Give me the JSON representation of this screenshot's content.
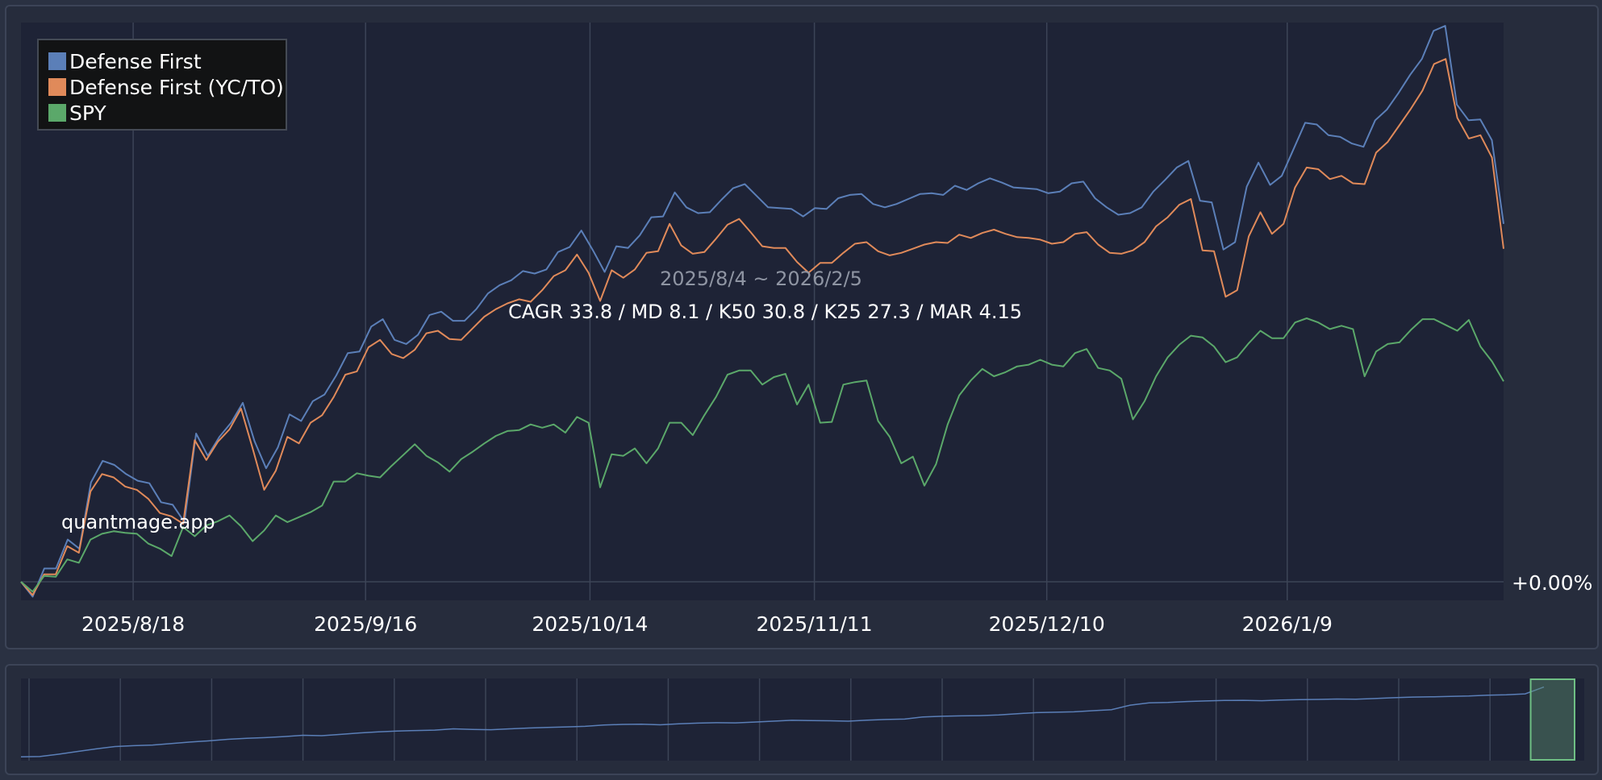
{
  "watermark": "quantmage.app",
  "period_label": "2025/8/4 ~ 2026/2/5",
  "stats_label": "CAGR 33.8 / MD 8.1 / K50 30.8 / K25 27.3 / MAR 4.15",
  "zero_label": "+0.00%",
  "colors": {
    "page_bg": "#2a3142",
    "plot_bg": "#1e2336",
    "grid": "#3c4457",
    "defense_first": "#5b7fb8",
    "defense_first_yc": "#e08a5a",
    "spy": "#5ba86a",
    "period_text": "#8f95a3",
    "text": "#ffffff"
  },
  "chart_data": {
    "type": "line",
    "title": "",
    "xlabel": "",
    "ylabel": "",
    "x_range": [
      "2025-08-04",
      "2026-02-05"
    ],
    "x_tick_labels": [
      "2025/8/18",
      "2025/9/16",
      "2025/10/14",
      "2025/11/11",
      "2025/12/10",
      "2026/1/9"
    ],
    "y_tick_labels": [
      "+0.00%"
    ],
    "legend_position": "top-left",
    "grid": true,
    "series": [
      {
        "name": "Defense First",
        "color": "#5b7fb8",
        "values": [
          0.0,
          -1.8,
          1.6,
          1.6,
          5.1,
          4.0,
          12.0,
          14.6,
          14.1,
          13.0,
          12.2,
          11.9,
          9.6,
          9.3,
          7.2,
          17.9,
          15.2,
          17.5,
          19.2,
          21.6,
          17.0,
          13.7,
          16.2,
          20.2,
          19.4,
          21.8,
          22.6,
          24.9,
          27.6,
          27.8,
          30.8,
          31.7,
          29.2,
          28.7,
          29.8,
          32.2,
          32.6,
          31.5,
          31.5,
          32.9,
          34.8,
          35.8,
          36.4,
          37.5,
          37.2,
          37.7,
          39.8,
          40.4,
          42.4,
          40.0,
          37.4,
          40.5,
          40.3,
          41.8,
          44.0,
          44.1,
          47.0,
          45.2,
          44.5,
          44.6,
          46.1,
          47.5,
          48.0,
          46.6,
          45.2,
          45.1,
          45.0,
          44.1,
          45.1,
          45.0,
          46.3,
          46.7,
          46.8,
          45.6,
          45.2,
          45.6,
          46.2,
          46.8,
          46.9,
          46.7,
          47.8,
          47.3,
          48.1,
          48.7,
          48.2,
          47.6,
          47.5,
          47.4,
          46.9,
          47.1,
          48.1,
          48.3,
          46.3,
          45.2,
          44.3,
          44.5,
          45.2,
          47.1,
          48.5,
          50.0,
          50.8,
          46.0,
          45.8,
          40.1,
          41.0,
          47.7,
          50.6,
          47.9,
          49.0,
          52.2,
          55.4,
          55.2,
          53.9,
          53.7,
          52.9,
          52.5,
          55.7,
          57.0,
          59.0,
          61.2,
          63.1,
          66.5,
          67.1,
          57.6,
          55.7,
          55.8,
          53.3,
          43.2
        ],
        "color_name": "blue"
      },
      {
        "name": "Defense First (YC/TO)",
        "color": "#e08a5a",
        "values": [
          0.0,
          -1.6,
          0.9,
          0.9,
          4.3,
          3.5,
          10.9,
          13.0,
          12.6,
          11.5,
          11.1,
          10.0,
          8.3,
          7.9,
          7.0,
          17.1,
          14.7,
          16.9,
          18.4,
          20.9,
          16.1,
          11.1,
          13.4,
          17.5,
          16.7,
          19.2,
          20.1,
          22.3,
          25.0,
          25.4,
          28.3,
          29.2,
          27.5,
          27.0,
          28.0,
          30.0,
          30.3,
          29.3,
          29.2,
          30.6,
          32.0,
          32.9,
          33.6,
          34.1,
          33.8,
          35.2,
          36.9,
          37.6,
          39.5,
          37.3,
          33.9,
          37.6,
          36.7,
          37.7,
          39.7,
          39.9,
          43.2,
          40.6,
          39.6,
          39.8,
          41.4,
          43.1,
          43.8,
          42.2,
          40.5,
          40.3,
          40.3,
          38.6,
          37.3,
          38.5,
          38.5,
          39.7,
          40.8,
          41.0,
          39.9,
          39.4,
          39.7,
          40.2,
          40.7,
          41.0,
          40.9,
          41.9,
          41.5,
          42.1,
          42.5,
          42.0,
          41.6,
          41.5,
          41.3,
          40.8,
          41.0,
          42.0,
          42.2,
          40.7,
          39.7,
          39.6,
          40.0,
          41.0,
          42.9,
          44.0,
          45.5,
          46.2,
          40.0,
          39.9,
          34.4,
          35.2,
          41.7,
          44.6,
          42.0,
          43.2,
          47.6,
          50.0,
          49.8,
          48.6,
          49.0,
          48.1,
          48.0,
          51.8,
          53.1,
          55.1,
          57.1,
          59.3,
          62.5,
          63.1,
          56.0,
          53.5,
          53.9,
          51.2,
          40.2
        ],
        "color_name": "orange"
      },
      {
        "name": "SPY",
        "color": "#5ba86a",
        "values": [
          0.0,
          -1.2,
          0.7,
          0.6,
          2.7,
          2.3,
          5.1,
          5.8,
          6.1,
          5.9,
          5.8,
          4.6,
          4.0,
          3.1,
          6.6,
          5.5,
          6.8,
          7.3,
          8.0,
          6.7,
          4.9,
          6.2,
          8.0,
          7.2,
          7.8,
          8.4,
          9.2,
          12.1,
          12.1,
          13.1,
          12.8,
          12.6,
          14.0,
          15.3,
          16.6,
          15.2,
          14.4,
          13.3,
          14.8,
          15.7,
          16.7,
          17.6,
          18.2,
          18.3,
          19.0,
          18.6,
          19.0,
          18.0,
          19.9,
          19.2,
          11.4,
          15.4,
          15.2,
          16.1,
          14.3,
          16.1,
          19.2,
          19.2,
          17.7,
          20.1,
          22.3,
          25.0,
          25.5,
          25.5,
          23.8,
          24.7,
          25.1,
          21.4,
          23.8,
          19.2,
          19.3,
          23.8,
          24.1,
          24.3,
          19.4,
          17.5,
          14.3,
          15.1,
          11.6,
          14.2,
          19.0,
          22.5,
          24.3,
          25.7,
          24.8,
          25.3,
          26.0,
          26.2,
          26.8,
          26.2,
          26.0,
          27.6,
          28.1,
          25.8,
          25.5,
          24.5,
          19.6,
          21.8,
          24.8,
          27.1,
          28.6,
          29.7,
          29.5,
          28.4,
          26.5,
          27.1,
          28.8,
          30.3,
          29.4,
          29.4,
          31.3,
          31.8,
          31.3,
          30.5,
          30.9,
          30.5,
          24.8,
          27.8,
          28.7,
          28.9,
          30.4,
          31.7,
          31.7,
          31.0,
          30.3,
          31.6,
          28.4,
          26.6,
          24.2
        ],
        "color_name": "green"
      }
    ]
  },
  "navigator": {
    "series_name": "Defense First",
    "color": "#5b7fb8",
    "values": [
      0.3,
      0.4,
      1.5,
      2.8,
      4.0,
      5.1,
      5.5,
      5.8,
      6.5,
      7.2,
      7.8,
      8.5,
      9.0,
      9.3,
      9.8,
      10.4,
      10.2,
      10.8,
      11.5,
      12.0,
      12.4,
      12.6,
      12.8,
      13.4,
      13.1,
      13.0,
      13.4,
      13.8,
      14.1,
      14.3,
      14.6,
      15.2,
      15.5,
      15.6,
      15.3,
      15.8,
      16.1,
      16.3,
      16.2,
      16.6,
      17.0,
      17.4,
      17.3,
      17.2,
      17.0,
      17.5,
      17.8,
      18.0,
      19.0,
      19.3,
      19.5,
      19.6,
      19.9,
      20.5,
      21.0,
      21.2,
      21.4,
      21.9,
      22.4,
      24.5,
      25.6,
      25.8,
      26.2,
      26.5,
      26.7,
      26.8,
      26.6,
      26.9,
      27.1,
      27.2,
      27.4,
      27.3,
      27.6,
      28.0,
      28.3,
      28.4,
      28.6,
      28.8,
      29.2,
      29.4,
      29.8,
      33.0
    ],
    "selected_fraction": [
      0.975,
      1.0
    ]
  }
}
